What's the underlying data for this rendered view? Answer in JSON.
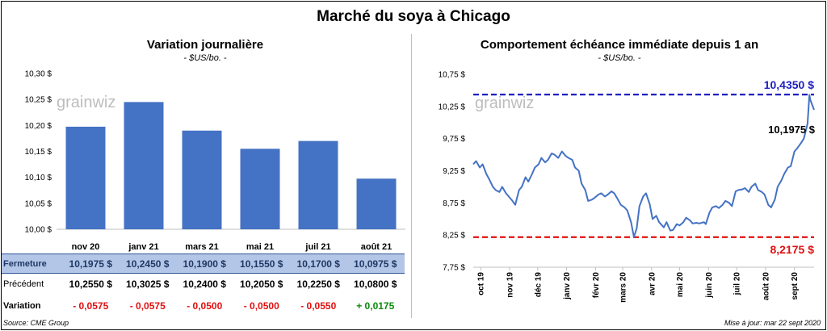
{
  "title": "Marché du soya à Chicago",
  "source": "Source: CME Group",
  "updated": "Mise à jour: mar 22 sept 2020",
  "watermark": "grainwiz",
  "colors": {
    "bar": "#4472c4",
    "line": "#4472c4",
    "max_line": "#1f1fbf",
    "min_line": "#e01010",
    "positive": "#0a8a0a",
    "negative": "#e01010"
  },
  "left_panel": {
    "title": "Variation  journalière",
    "subtitle": "- $US/bo. -"
  },
  "right_panel": {
    "title": "Comportement  échéance immédiate depuis 1 an",
    "subtitle": "- $US/bo. -"
  },
  "table": {
    "rows": [
      {
        "label": "Fermeture",
        "values": [
          "10,1975  $",
          "10,2450  $",
          "10,1900  $",
          "10,1550  $",
          "10,1700  $",
          "10,0975  $"
        ]
      },
      {
        "label": "Précédent",
        "values": [
          "10,2550  $",
          "10,3025  $",
          "10,2400  $",
          "10,2050  $",
          "10,2250  $",
          "10,0800  $"
        ]
      },
      {
        "label": "Variation",
        "values": [
          "- 0,0575",
          "- 0,0575",
          "- 0,0500",
          "- 0,0500",
          "- 0,0550",
          "+ 0,0175"
        ]
      }
    ]
  },
  "chart_data": [
    {
      "type": "bar",
      "categories": [
        "nov 20",
        "janv 21",
        "mars 21",
        "mai 21",
        "juil 21",
        "août 21"
      ],
      "values": [
        10.1975,
        10.245,
        10.19,
        10.155,
        10.17,
        10.0975
      ],
      "ylim": [
        10.0,
        10.3
      ],
      "yticks": [
        10.0,
        10.05,
        10.1,
        10.15,
        10.2,
        10.25,
        10.3
      ],
      "ytick_labels": [
        "10,00 $",
        "10,05 $",
        "10,10 $",
        "10,15 $",
        "10,20 $",
        "10,25 $",
        "10,30 $"
      ],
      "grid": false
    },
    {
      "type": "line",
      "xlim": [
        "2019-09-23",
        "2020-09-22"
      ],
      "ylim": [
        7.75,
        10.75
      ],
      "yticks": [
        7.75,
        8.25,
        8.75,
        9.25,
        9.75,
        10.25,
        10.75
      ],
      "ytick_labels": [
        "7,75 $",
        "8,25 $",
        "8,75 $",
        "9,25 $",
        "9,75 $",
        "10,25 $",
        "10,75 $"
      ],
      "xticks": [
        "2019-10-01",
        "2019-11-01",
        "2019-12-01",
        "2020-01-01",
        "2020-02-01",
        "2020-03-01",
        "2020-04-01",
        "2020-05-01",
        "2020-06-01",
        "2020-07-01",
        "2020-08-01",
        "2020-09-01"
      ],
      "xtick_labels": [
        "oct 19",
        "nov 19",
        "déc 19",
        "janv 20",
        "févr 20",
        "mars 20",
        "avr 20",
        "mai 20",
        "juin 20",
        "juil 20",
        "août 20",
        "sept 20"
      ],
      "max": {
        "value": 10.435,
        "label": "10,4350 $"
      },
      "min": {
        "value": 8.2175,
        "label": "8,2175 $"
      },
      "last": {
        "value": 10.1975,
        "label": "10,1975 $"
      },
      "series": [
        {
          "x": [
            "2019-09-23",
            "2019-09-26",
            "2019-09-30",
            "2019-10-03",
            "2019-10-07",
            "2019-10-10",
            "2019-10-14",
            "2019-10-17",
            "2019-10-21",
            "2019-10-24",
            "2019-10-28",
            "2019-10-31",
            "2019-11-04",
            "2019-11-07",
            "2019-11-11",
            "2019-11-14",
            "2019-11-18",
            "2019-11-21",
            "2019-11-25",
            "2019-11-28",
            "2019-12-02",
            "2019-12-05",
            "2019-12-09",
            "2019-12-12",
            "2019-12-16",
            "2019-12-19",
            "2019-12-23",
            "2019-12-27",
            "2019-12-31",
            "2020-01-03",
            "2020-01-07",
            "2020-01-10",
            "2020-01-14",
            "2020-01-17",
            "2020-01-21",
            "2020-01-24",
            "2020-01-28",
            "2020-01-31",
            "2020-02-04",
            "2020-02-07",
            "2020-02-11",
            "2020-02-14",
            "2020-02-18",
            "2020-02-21",
            "2020-02-25",
            "2020-02-28",
            "2020-03-03",
            "2020-03-06",
            "2020-03-10",
            "2020-03-13",
            "2020-03-16",
            "2020-03-19",
            "2020-03-23",
            "2020-03-26",
            "2020-03-30",
            "2020-04-02",
            "2020-04-06",
            "2020-04-09",
            "2020-04-14",
            "2020-04-17",
            "2020-04-21",
            "2020-04-24",
            "2020-04-28",
            "2020-05-01",
            "2020-05-05",
            "2020-05-08",
            "2020-05-12",
            "2020-05-15",
            "2020-05-19",
            "2020-05-22",
            "2020-05-27",
            "2020-05-29",
            "2020-06-02",
            "2020-06-05",
            "2020-06-09",
            "2020-06-12",
            "2020-06-16",
            "2020-06-19",
            "2020-06-23",
            "2020-06-26",
            "2020-06-30",
            "2020-07-03",
            "2020-07-07",
            "2020-07-10",
            "2020-07-14",
            "2020-07-17",
            "2020-07-21",
            "2020-07-24",
            "2020-07-28",
            "2020-07-31",
            "2020-08-04",
            "2020-08-07",
            "2020-08-11",
            "2020-08-14",
            "2020-08-18",
            "2020-08-21",
            "2020-08-25",
            "2020-08-28",
            "2020-09-01",
            "2020-09-04",
            "2020-09-08",
            "2020-09-11",
            "2020-09-15",
            "2020-09-17",
            "2020-09-18",
            "2020-09-22"
          ],
          "y": [
            9.35,
            9.4,
            9.3,
            9.35,
            9.2,
            9.12,
            9.0,
            8.95,
            8.92,
            9.0,
            8.9,
            8.85,
            8.78,
            8.72,
            8.95,
            9.0,
            9.15,
            9.08,
            9.2,
            9.3,
            9.35,
            9.45,
            9.38,
            9.42,
            9.52,
            9.5,
            9.45,
            9.55,
            9.48,
            9.45,
            9.42,
            9.3,
            9.25,
            9.05,
            8.95,
            8.78,
            8.8,
            8.83,
            8.88,
            8.9,
            8.85,
            8.88,
            8.93,
            8.9,
            8.8,
            8.72,
            8.68,
            8.63,
            8.45,
            8.22,
            8.35,
            8.7,
            8.85,
            8.9,
            8.73,
            8.5,
            8.55,
            8.45,
            8.37,
            8.45,
            8.32,
            8.33,
            8.42,
            8.4,
            8.45,
            8.52,
            8.48,
            8.43,
            8.44,
            8.43,
            8.45,
            8.42,
            8.6,
            8.68,
            8.7,
            8.67,
            8.72,
            8.78,
            8.75,
            8.7,
            8.93,
            8.95,
            8.96,
            8.98,
            8.92,
            9.0,
            9.05,
            8.95,
            8.92,
            8.88,
            8.72,
            8.68,
            8.8,
            9.0,
            9.1,
            9.2,
            9.3,
            9.32,
            9.55,
            9.6,
            9.68,
            9.75,
            9.98,
            10.43,
            10.35,
            10.1975
          ]
        }
      ]
    }
  ]
}
